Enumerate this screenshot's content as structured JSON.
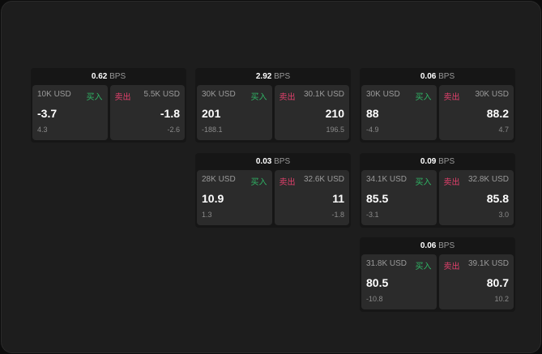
{
  "widgets": [
    {
      "bps": "0.62",
      "unit": "BPS",
      "buy": {
        "size": "10K USD",
        "label": "买入",
        "price": "-3.7",
        "delta": "4.3"
      },
      "sell": {
        "size": "5.5K USD",
        "label": "卖出",
        "price": "-1.8",
        "delta": "-2.6"
      }
    },
    {
      "bps": "2.92",
      "unit": "BPS",
      "buy": {
        "size": "30K USD",
        "label": "买入",
        "price": "201",
        "delta": "-188.1"
      },
      "sell": {
        "size": "30.1K USD",
        "label": "卖出",
        "price": "210",
        "delta": "196.5"
      }
    },
    {
      "bps": "0.06",
      "unit": "BPS",
      "buy": {
        "size": "30K USD",
        "label": "买入",
        "price": "88",
        "delta": "-4.9"
      },
      "sell": {
        "size": "30K USD",
        "label": "卖出",
        "price": "88.2",
        "delta": "4.7"
      }
    },
    {
      "bps": "0.03",
      "unit": "BPS",
      "buy": {
        "size": "28K USD",
        "label": "买入",
        "price": "10.9",
        "delta": "1.3"
      },
      "sell": {
        "size": "32.6K USD",
        "label": "卖出",
        "price": "11",
        "delta": "-1.8"
      }
    },
    {
      "bps": "0.09",
      "unit": "BPS",
      "buy": {
        "size": "34.1K USD",
        "label": "买入",
        "price": "85.5",
        "delta": "-3.1"
      },
      "sell": {
        "size": "32.8K USD",
        "label": "卖出",
        "price": "85.8",
        "delta": "3.0"
      }
    },
    {
      "bps": "0.06",
      "unit": "BPS",
      "buy": {
        "size": "31.8K USD",
        "label": "买入",
        "price": "80.5",
        "delta": "-10.8"
      },
      "sell": {
        "size": "39.1K USD",
        "label": "卖出",
        "price": "80.7",
        "delta": "10.2"
      }
    }
  ],
  "colors": {
    "buy": "#2fb565",
    "sell": "#e2406c"
  }
}
